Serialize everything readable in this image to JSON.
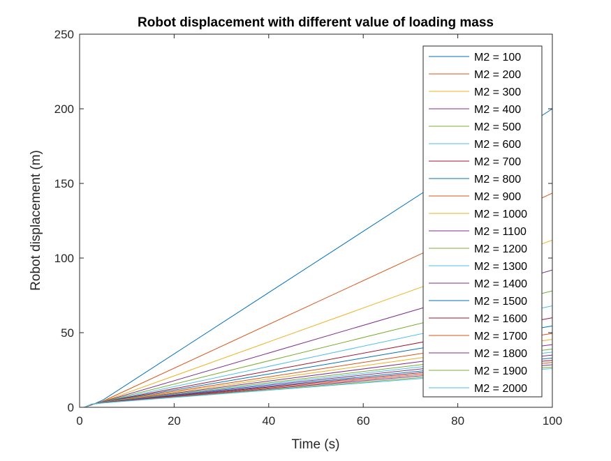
{
  "chart_data": {
    "type": "line",
    "title": "Robot displacement with different value of loading mass",
    "xlabel": "Time (s)",
    "ylabel": "Robot displacement (m)",
    "xlim": [
      0,
      100
    ],
    "ylim": [
      0,
      250
    ],
    "xticks": [
      0,
      20,
      40,
      60,
      80,
      100
    ],
    "yticks": [
      0,
      50,
      100,
      150,
      200,
      250
    ],
    "xtick_labels": [
      "0",
      "20",
      "40",
      "60",
      "80",
      "100"
    ],
    "ytick_labels": [
      "0",
      "50",
      "100",
      "150",
      "200",
      "250"
    ],
    "grid": false,
    "legend_position": "top-right",
    "series": [
      {
        "name": "M2 = 100",
        "color": "#0072BD",
        "x": [
          1,
          2.5,
          5,
          100
        ],
        "y": [
          0,
          1.5,
          5,
          200
        ]
      },
      {
        "name": "M2 = 200",
        "color": "#D95319",
        "x": [
          1,
          2.5,
          5,
          100
        ],
        "y": [
          0,
          1.6,
          4.2,
          143.5
        ]
      },
      {
        "name": "M2 = 300",
        "color": "#EDB120",
        "x": [
          1,
          2.5,
          5,
          100
        ],
        "y": [
          0,
          1.7,
          4.0,
          112
        ]
      },
      {
        "name": "M2 = 400",
        "color": "#7E2F8E",
        "x": [
          1,
          2.5,
          5,
          100
        ],
        "y": [
          0,
          1.7,
          3.9,
          92
        ]
      },
      {
        "name": "M2 = 500",
        "color": "#77AC30",
        "x": [
          1,
          2.5,
          5,
          100
        ],
        "y": [
          0,
          1.8,
          3.8,
          78
        ]
      },
      {
        "name": "M2 = 600",
        "color": "#4DBEEE",
        "x": [
          1,
          2.5,
          5,
          100
        ],
        "y": [
          0,
          1.8,
          3.7,
          68
        ]
      },
      {
        "name": "M2 = 700",
        "color": "#A2142F",
        "x": [
          1,
          2.5,
          5,
          100
        ],
        "y": [
          0,
          1.8,
          3.6,
          60
        ]
      },
      {
        "name": "M2 = 800",
        "color": "#0072BD",
        "x": [
          1,
          2.5,
          5,
          100
        ],
        "y": [
          0,
          1.9,
          3.5,
          54.5
        ]
      },
      {
        "name": "M2 = 900",
        "color": "#D95319",
        "x": [
          1,
          2.5,
          5,
          100
        ],
        "y": [
          0,
          1.9,
          3.4,
          49.5
        ]
      },
      {
        "name": "M2 = 1000",
        "color": "#EDB120",
        "x": [
          1,
          2.5,
          5,
          100
        ],
        "y": [
          0,
          1.9,
          3.4,
          45.5
        ]
      },
      {
        "name": "M2 = 1100",
        "color": "#7E2F8E",
        "x": [
          1,
          2.5,
          5,
          100
        ],
        "y": [
          0,
          1.9,
          3.3,
          42
        ]
      },
      {
        "name": "M2 = 1200",
        "color": "#77AC30",
        "x": [
          1,
          2.5,
          5,
          100
        ],
        "y": [
          0,
          2.0,
          3.3,
          39
        ]
      },
      {
        "name": "M2 = 1300",
        "color": "#4DBEEE",
        "x": [
          1,
          2.5,
          5,
          100
        ],
        "y": [
          0,
          2.0,
          3.2,
          37
        ]
      },
      {
        "name": "M2 = 1400",
        "color": "#7E2F8E",
        "x": [
          1,
          2.5,
          5,
          100
        ],
        "y": [
          0,
          2.0,
          3.2,
          35
        ]
      },
      {
        "name": "M2 = 1500",
        "color": "#0072BD",
        "x": [
          1,
          2.5,
          5,
          100
        ],
        "y": [
          0,
          2.0,
          3.1,
          33
        ]
      },
      {
        "name": "M2 = 1600",
        "color": "#A2142F",
        "x": [
          1,
          2.5,
          5,
          100
        ],
        "y": [
          0,
          2.0,
          3.1,
          31.5
        ]
      },
      {
        "name": "M2 = 1700",
        "color": "#D95319",
        "x": [
          1,
          2.5,
          5,
          100
        ],
        "y": [
          0,
          2.1,
          3.0,
          30
        ]
      },
      {
        "name": "M2 = 1800",
        "color": "#7E2F8E",
        "x": [
          1,
          2.5,
          5,
          100
        ],
        "y": [
          0,
          2.1,
          3.0,
          28.5
        ]
      },
      {
        "name": "M2 = 1900",
        "color": "#77AC30",
        "x": [
          1,
          2.5,
          5,
          100
        ],
        "y": [
          0,
          2.1,
          3.0,
          27
        ]
      },
      {
        "name": "M2 = 2000",
        "color": "#4DBEEE",
        "x": [
          1,
          2.5,
          5,
          100
        ],
        "y": [
          0,
          2.1,
          2.9,
          26
        ]
      }
    ]
  }
}
